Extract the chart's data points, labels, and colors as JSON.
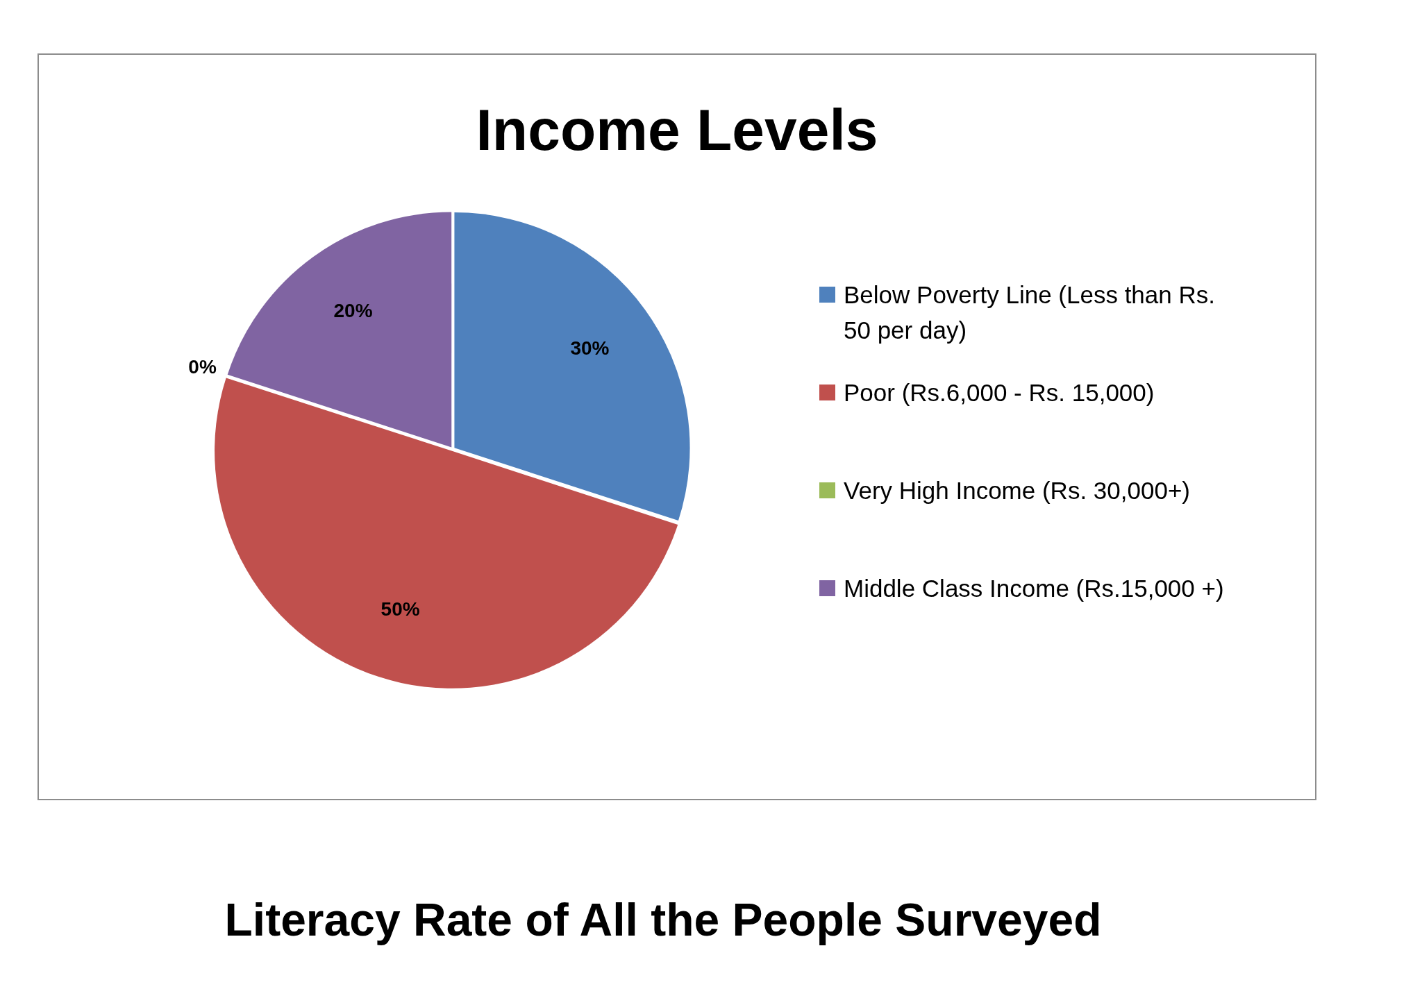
{
  "chart_data": {
    "type": "pie",
    "title": "Income Levels",
    "categories": [
      "Below Poverty Line (Less than Rs. 50 per day)",
      "Poor (Rs.6,000 - Rs. 15,000)",
      "Very High Income (Rs. 30,000+)",
      "Middle Class Income (Rs.15,000 +)"
    ],
    "values": [
      30,
      50,
      0,
      20
    ],
    "colors": [
      "#4f81bd",
      "#c0504d",
      "#9bbb59",
      "#8064a2"
    ],
    "value_labels": [
      "30%",
      "50%",
      "0%",
      "20%"
    ],
    "legend": "right",
    "annotations": [
      "Literacy Rate of All the People Surveyed"
    ]
  }
}
